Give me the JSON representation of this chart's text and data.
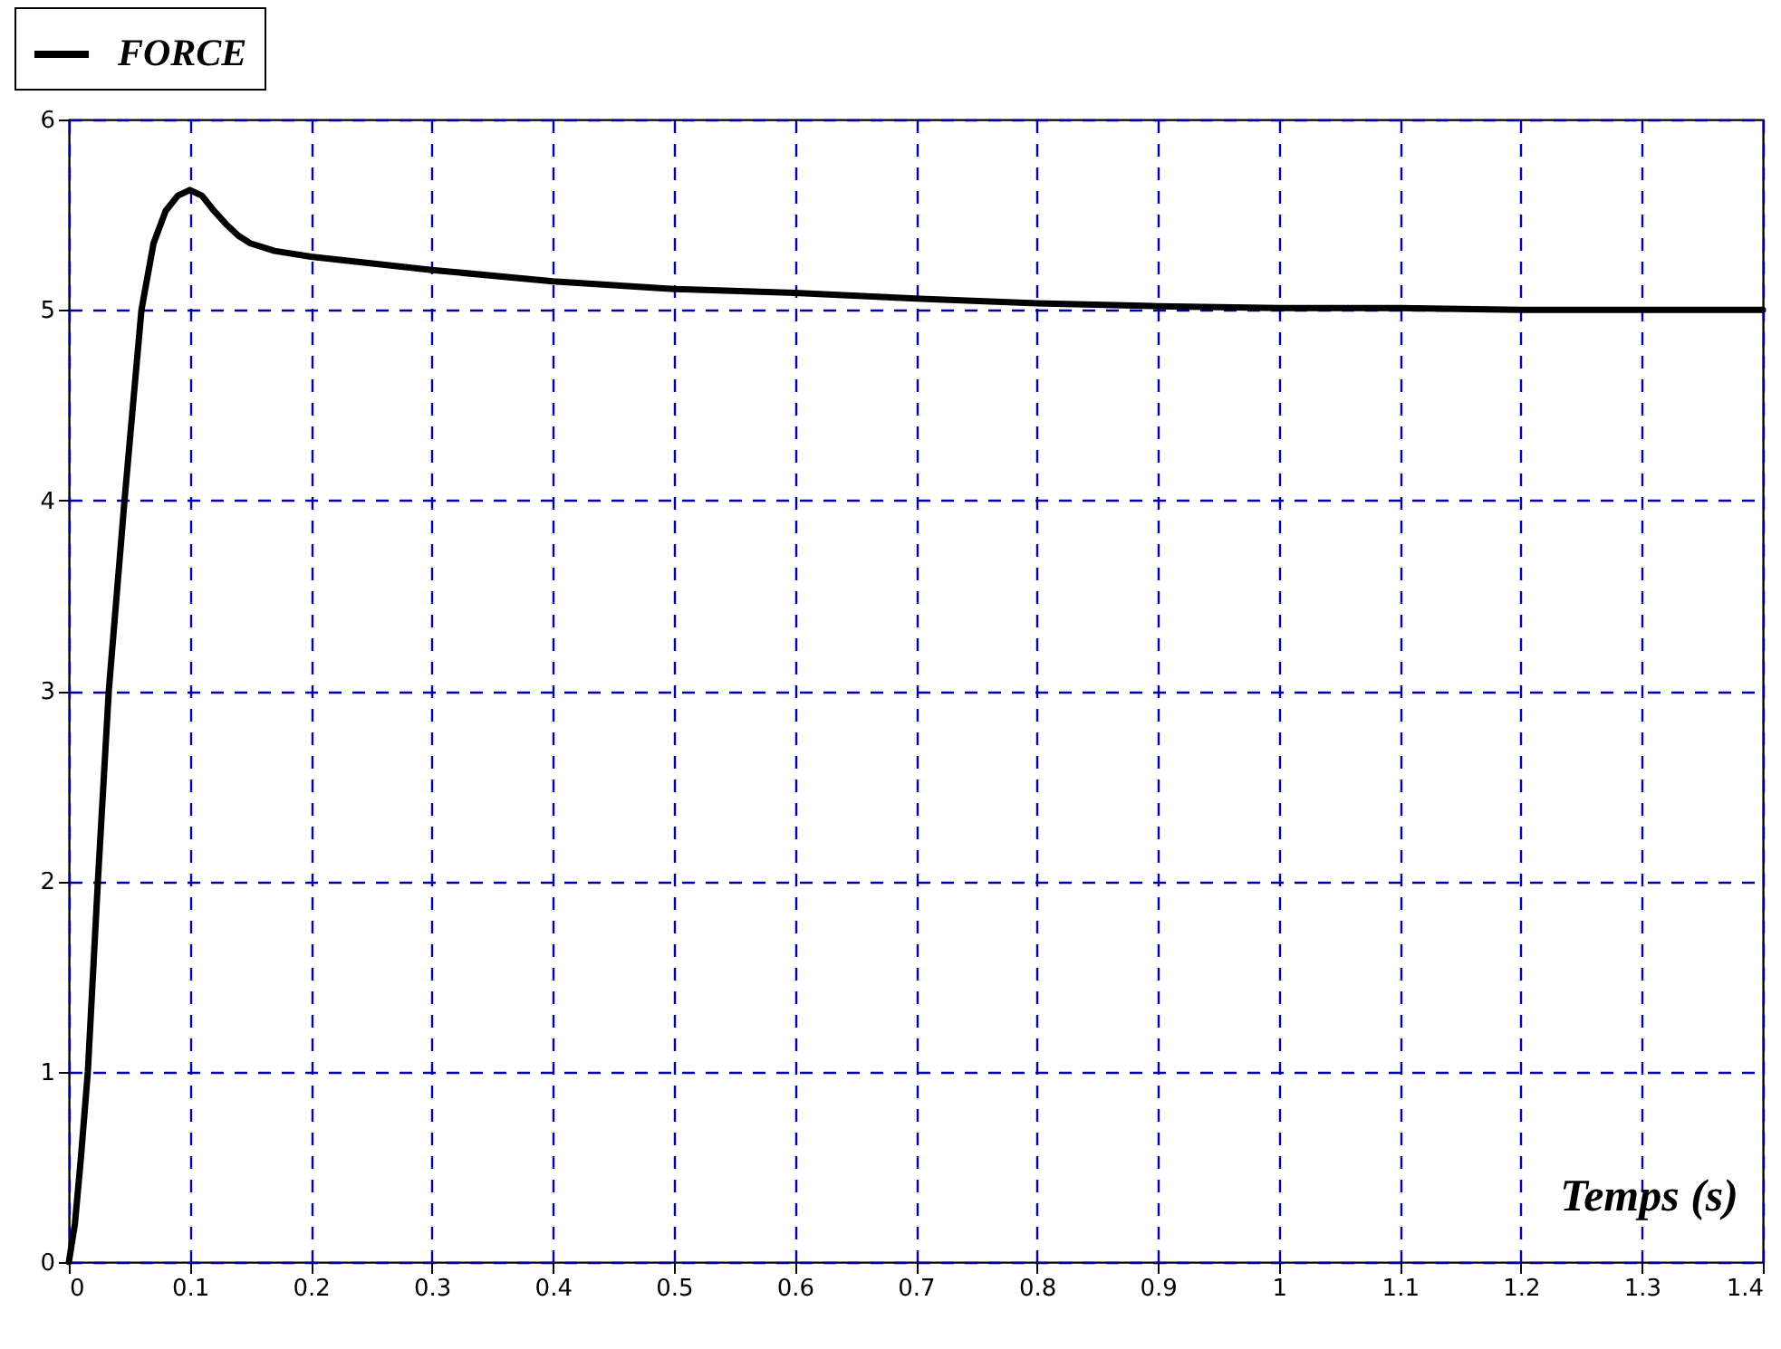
{
  "chart_data": {
    "type": "line",
    "xlabel": "Temps (s)",
    "xlim": [
      0,
      1.4
    ],
    "ylim": [
      0,
      6
    ],
    "xticks": [
      0,
      0.1,
      0.2,
      0.3,
      0.4,
      0.5,
      0.6,
      0.7,
      0.8,
      0.9,
      1,
      1.1,
      1.2,
      1.3,
      1.4
    ],
    "yticks": [
      0,
      1,
      2,
      3,
      4,
      5,
      6
    ],
    "grid": true,
    "legend": "top left",
    "line_style": "solid",
    "marker": "none",
    "x": [
      0,
      0.005,
      0.01,
      0.0157,
      0.024,
      0.033,
      0.046,
      0.053,
      0.06,
      0.07,
      0.08,
      0.09,
      0.1,
      0.11,
      0.12,
      0.13,
      0.14,
      0.15,
      0.17,
      0.2,
      0.3,
      0.4,
      0.5,
      0.6,
      0.7,
      0.8,
      0.9,
      1,
      1.1,
      1.2,
      1.3,
      1.4
    ],
    "series": [
      {
        "name": "FORCE",
        "color": "#000000",
        "values": [
          0,
          0.2,
          0.55,
          1,
          2,
          3,
          4,
          4.5,
          5,
          5.35,
          5.52,
          5.6,
          5.63,
          5.6,
          5.52,
          5.45,
          5.39,
          5.35,
          5.31,
          5.28,
          5.21,
          5.15,
          5.11,
          5.09,
          5.06,
          5.035,
          5.02,
          5.01,
          5.01,
          5.0,
          5.0,
          5.0
        ]
      }
    ]
  }
}
